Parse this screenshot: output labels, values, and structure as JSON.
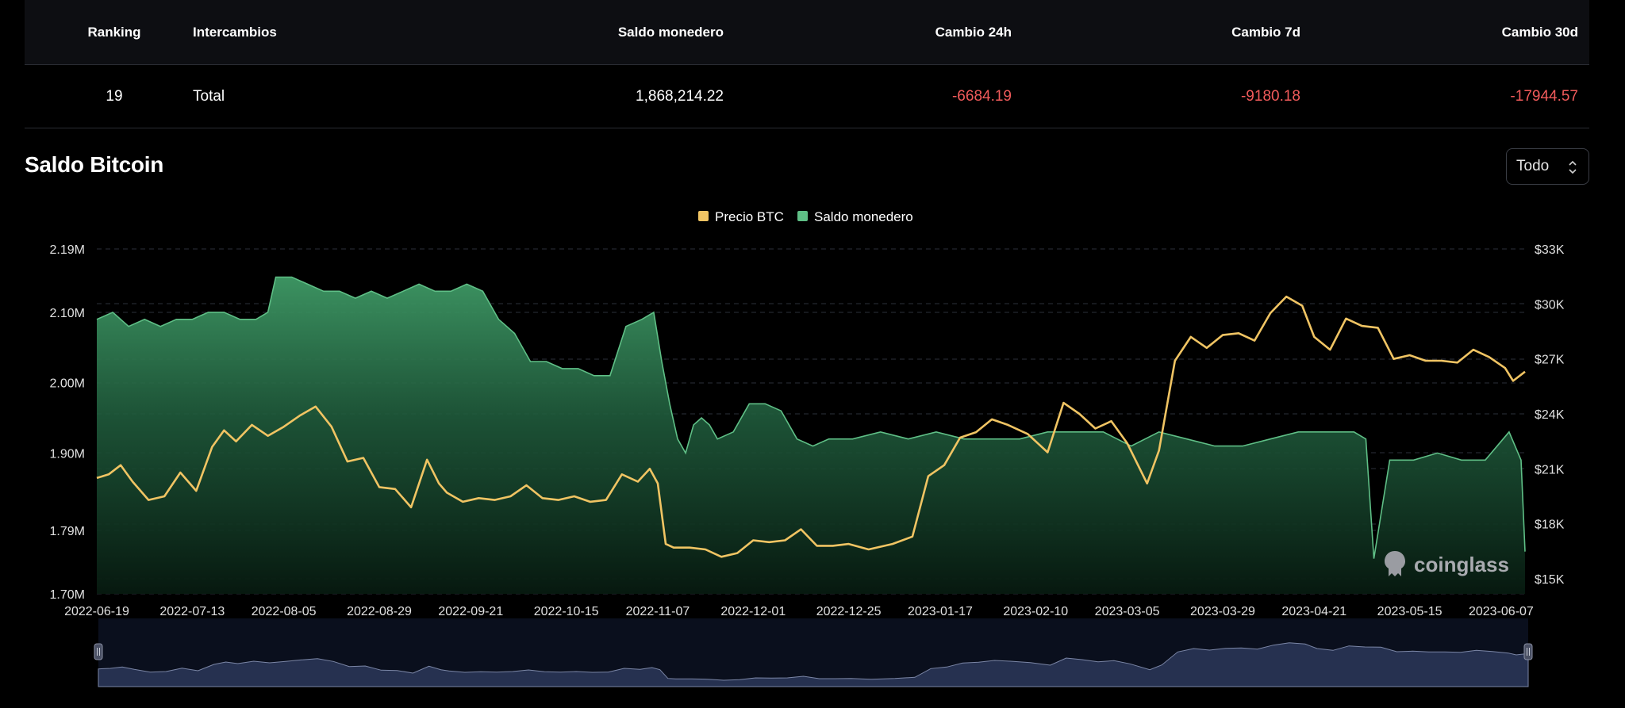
{
  "table": {
    "headers": {
      "rank": "Ranking",
      "exchanges": "Intercambios",
      "wallet_balance": "Saldo monedero",
      "change_24h": "Cambio 24h",
      "change_7d": "Cambio 7d",
      "change_30d": "Cambio 30d"
    },
    "row": {
      "rank": "19",
      "exchange": "Total",
      "wallet_balance": "1,868,214.22",
      "change_24h": "-6684.19",
      "change_7d": "-9180.18",
      "change_30d": "-17944.57"
    }
  },
  "section_title": "Saldo Bitcoin",
  "range_select": {
    "value": "Todo"
  },
  "watermark": "coinglass",
  "colors": {
    "price": "#f0c463",
    "balance": "#5fbf86",
    "negative": "#f15b5b",
    "navigator": "#263150"
  },
  "chart_data": {
    "type": "area",
    "legend": [
      "Precio BTC",
      "Saldo monedero"
    ],
    "legend_position": "top-center",
    "grid": true,
    "x_ticks": [
      "2022-06-19",
      "2022-07-13",
      "2022-08-05",
      "2022-08-29",
      "2022-09-21",
      "2022-10-15",
      "2022-11-07",
      "2022-12-01",
      "2022-12-25",
      "2023-01-17",
      "2023-02-10",
      "2023-03-05",
      "2023-03-29",
      "2023-04-21",
      "2023-05-15",
      "2023-06-07"
    ],
    "x_range": [
      "2022-06-19",
      "2023-06-13"
    ],
    "y_left": {
      "ticks": [
        "2.19M",
        "2.10M",
        "2.00M",
        "1.90M",
        "1.79M",
        "1.70M"
      ],
      "min": 1.7,
      "max": 2.19,
      "unit": "M"
    },
    "y_right": {
      "ticks": [
        "$33K",
        "$30K",
        "$27K",
        "$24K",
        "$21K",
        "$18K",
        "$15K"
      ],
      "min": 15,
      "max": 33,
      "unit": "K USD"
    },
    "series": [
      {
        "name": "Saldo monedero",
        "axis": "left",
        "kind": "area",
        "dates": [
          "2022-06-19",
          "2022-06-23",
          "2022-06-27",
          "2022-07-01",
          "2022-07-05",
          "2022-07-09",
          "2022-07-13",
          "2022-07-17",
          "2022-07-21",
          "2022-07-25",
          "2022-07-29",
          "2022-08-01",
          "2022-08-03",
          "2022-08-07",
          "2022-08-11",
          "2022-08-15",
          "2022-08-19",
          "2022-08-23",
          "2022-08-27",
          "2022-08-31",
          "2022-09-04",
          "2022-09-08",
          "2022-09-12",
          "2022-09-16",
          "2022-09-20",
          "2022-09-24",
          "2022-09-28",
          "2022-10-02",
          "2022-10-06",
          "2022-10-10",
          "2022-10-14",
          "2022-10-18",
          "2022-10-22",
          "2022-10-26",
          "2022-10-30",
          "2022-11-03",
          "2022-11-06",
          "2022-11-08",
          "2022-11-10",
          "2022-11-12",
          "2022-11-14",
          "2022-11-16",
          "2022-11-18",
          "2022-11-20",
          "2022-11-22",
          "2022-11-26",
          "2022-11-30",
          "2022-12-04",
          "2022-12-08",
          "2022-12-12",
          "2022-12-16",
          "2022-12-20",
          "2022-12-26",
          "2023-01-02",
          "2023-01-09",
          "2023-01-16",
          "2023-01-23",
          "2023-01-30",
          "2023-02-06",
          "2023-02-13",
          "2023-02-20",
          "2023-02-27",
          "2023-03-06",
          "2023-03-13",
          "2023-03-20",
          "2023-03-27",
          "2023-04-03",
          "2023-04-10",
          "2023-04-17",
          "2023-04-24",
          "2023-05-01",
          "2023-05-04",
          "2023-05-06",
          "2023-05-10",
          "2023-05-16",
          "2023-05-22",
          "2023-05-28",
          "2023-06-03",
          "2023-06-09",
          "2023-06-12",
          "2023-06-13"
        ],
        "values": [
          2.09,
          2.1,
          2.08,
          2.09,
          2.08,
          2.09,
          2.09,
          2.1,
          2.1,
          2.09,
          2.09,
          2.1,
          2.15,
          2.15,
          2.14,
          2.13,
          2.13,
          2.12,
          2.13,
          2.12,
          2.13,
          2.14,
          2.13,
          2.13,
          2.14,
          2.13,
          2.09,
          2.07,
          2.03,
          2.03,
          2.02,
          2.02,
          2.01,
          2.01,
          2.08,
          2.09,
          2.1,
          2.03,
          1.97,
          1.92,
          1.9,
          1.94,
          1.95,
          1.94,
          1.92,
          1.93,
          1.97,
          1.97,
          1.96,
          1.92,
          1.91,
          1.92,
          1.92,
          1.93,
          1.92,
          1.93,
          1.92,
          1.92,
          1.92,
          1.93,
          1.93,
          1.93,
          1.91,
          1.93,
          1.92,
          1.91,
          1.91,
          1.92,
          1.93,
          1.93,
          1.93,
          1.92,
          1.75,
          1.89,
          1.89,
          1.9,
          1.89,
          1.89,
          1.93,
          1.89,
          1.76
        ]
      },
      {
        "name": "Precio BTC",
        "axis": "right",
        "kind": "line",
        "dates": [
          "2022-06-19",
          "2022-06-22",
          "2022-06-25",
          "2022-06-28",
          "2022-07-02",
          "2022-07-06",
          "2022-07-10",
          "2022-07-14",
          "2022-07-18",
          "2022-07-21",
          "2022-07-24",
          "2022-07-28",
          "2022-08-01",
          "2022-08-05",
          "2022-08-09",
          "2022-08-13",
          "2022-08-17",
          "2022-08-21",
          "2022-08-25",
          "2022-08-29",
          "2022-09-02",
          "2022-09-06",
          "2022-09-10",
          "2022-09-13",
          "2022-09-15",
          "2022-09-19",
          "2022-09-23",
          "2022-09-27",
          "2022-10-01",
          "2022-10-05",
          "2022-10-09",
          "2022-10-13",
          "2022-10-17",
          "2022-10-21",
          "2022-10-25",
          "2022-10-29",
          "2022-11-02",
          "2022-11-05",
          "2022-11-07",
          "2022-11-09",
          "2022-11-11",
          "2022-11-15",
          "2022-11-19",
          "2022-11-23",
          "2022-11-27",
          "2022-12-01",
          "2022-12-05",
          "2022-12-09",
          "2022-12-13",
          "2022-12-17",
          "2022-12-21",
          "2022-12-25",
          "2022-12-30",
          "2023-01-05",
          "2023-01-10",
          "2023-01-14",
          "2023-01-18",
          "2023-01-22",
          "2023-01-26",
          "2023-01-30",
          "2023-02-03",
          "2023-02-08",
          "2023-02-13",
          "2023-02-17",
          "2023-02-21",
          "2023-02-25",
          "2023-03-01",
          "2023-03-05",
          "2023-03-10",
          "2023-03-13",
          "2023-03-17",
          "2023-03-21",
          "2023-03-25",
          "2023-03-29",
          "2023-04-02",
          "2023-04-06",
          "2023-04-10",
          "2023-04-14",
          "2023-04-18",
          "2023-04-21",
          "2023-04-25",
          "2023-04-29",
          "2023-05-03",
          "2023-05-07",
          "2023-05-11",
          "2023-05-15",
          "2023-05-19",
          "2023-05-23",
          "2023-05-27",
          "2023-05-31",
          "2023-06-04",
          "2023-06-08",
          "2023-06-10",
          "2023-06-13"
        ],
        "values": [
          20.5,
          20.7,
          21.2,
          20.3,
          19.3,
          19.5,
          20.8,
          19.8,
          22.2,
          23.1,
          22.5,
          23.4,
          22.8,
          23.3,
          23.9,
          24.4,
          23.3,
          21.4,
          21.6,
          20.0,
          19.9,
          18.9,
          21.5,
          20.2,
          19.7,
          19.2,
          19.4,
          19.3,
          19.5,
          20.1,
          19.4,
          19.3,
          19.5,
          19.2,
          19.3,
          20.7,
          20.3,
          21.0,
          20.2,
          16.9,
          16.7,
          16.7,
          16.6,
          16.2,
          16.4,
          17.1,
          17.0,
          17.1,
          17.7,
          16.8,
          16.8,
          16.9,
          16.6,
          16.9,
          17.3,
          20.6,
          21.2,
          22.7,
          23.0,
          23.7,
          23.4,
          22.9,
          21.9,
          24.6,
          24.0,
          23.2,
          23.6,
          22.4,
          20.2,
          22.0,
          26.9,
          28.2,
          27.6,
          28.3,
          28.4,
          28.0,
          29.5,
          30.4,
          29.9,
          28.2,
          27.5,
          29.2,
          28.8,
          28.7,
          27.0,
          27.2,
          26.9,
          26.9,
          26.8,
          27.5,
          27.1,
          26.5,
          25.8,
          26.3
        ]
      }
    ]
  }
}
